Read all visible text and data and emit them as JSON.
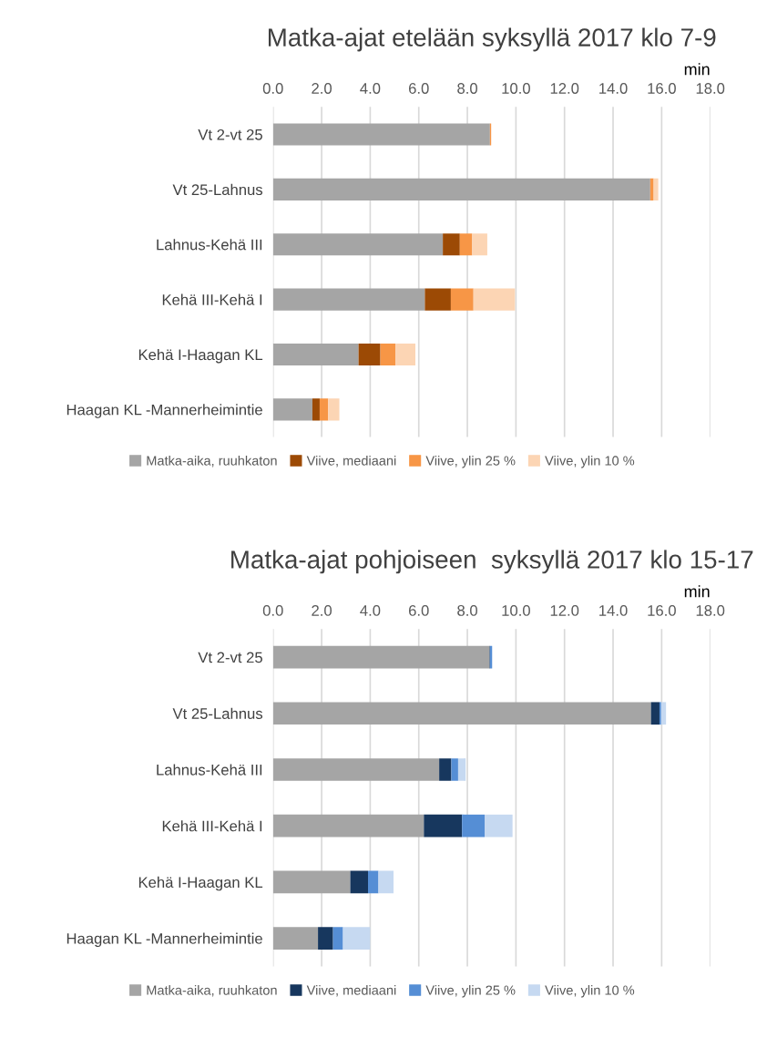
{
  "chart_data": [
    {
      "type": "bar",
      "orientation": "horizontal",
      "stacked": true,
      "title": "Matka-ajat etelään syksyllä 2017 klo 7-9",
      "xlabel": "min",
      "categories": [
        "Vt 2-vt 25",
        "Vt 25-Lahnus",
        "Lahnus-Kehä III",
        "Kehä III-Kehä I",
        "Kehä I-Haagan KL",
        "Haagan KL -Mannerheimintie"
      ],
      "series": [
        {
          "name": "Matka-aika, ruuhkaton",
          "color": "#a5a5a5",
          "values": [
            8.93,
            15.53,
            6.99,
            6.25,
            3.52,
            1.62
          ]
        },
        {
          "name": "Viive, mediaani",
          "color": "#9c4a05",
          "values": [
            0,
            0,
            0.7,
            1.07,
            0.9,
            0.3
          ]
        },
        {
          "name": "Viive, ylin 25 %",
          "color": "#f79646",
          "values": [
            0.05,
            0.14,
            0.51,
            0.93,
            0.62,
            0.35
          ]
        },
        {
          "name": "Viive, ylin 10 %",
          "color": "#fcd5b4",
          "values": [
            0,
            0.19,
            0.62,
            1.71,
            0.82,
            0.46
          ]
        }
      ],
      "xlim": [
        0,
        18
      ],
      "xticks": [
        {
          "value": 0,
          "label": "0.0"
        },
        {
          "value": 2,
          "label": "2.0"
        },
        {
          "value": 4,
          "label": "4.0"
        },
        {
          "value": 6,
          "label": "6.0"
        },
        {
          "value": 8,
          "label": "8.0"
        },
        {
          "value": 10,
          "label": "10.0"
        },
        {
          "value": 12,
          "label": "12.0"
        },
        {
          "value": 14,
          "label": "14.0"
        },
        {
          "value": 16,
          "label": "16.0"
        },
        {
          "value": 18,
          "label": "18.0"
        }
      ],
      "grid": "x",
      "legend": "bottom"
    },
    {
      "type": "bar",
      "orientation": "horizontal",
      "stacked": true,
      "title": "Matka-ajat pohjoiseen  syksyllä 2017 klo 15-17",
      "xlabel": "min",
      "categories": [
        "Vt 2-vt 25",
        "Vt 25-Lahnus",
        "Lahnus-Kehä III",
        "Kehä III-Kehä I",
        "Kehä I-Haagan KL",
        "Haagan KL -Mannerheimintie"
      ],
      "series": [
        {
          "name": "Matka-aika, ruuhkaton",
          "color": "#a5a5a5",
          "values": [
            8.91,
            15.56,
            6.84,
            6.21,
            3.18,
            1.85
          ]
        },
        {
          "name": "Viive, mediaani",
          "color": "#17375e",
          "values": [
            0.02,
            0.35,
            0.5,
            1.57,
            0.73,
            0.62
          ]
        },
        {
          "name": "Viive, ylin 25 %",
          "color": "#558ed5",
          "values": [
            0.09,
            0.07,
            0.28,
            0.93,
            0.43,
            0.41
          ]
        },
        {
          "name": "Viive, ylin 10 %",
          "color": "#c6d9f1",
          "values": [
            0,
            0.2,
            0.31,
            1.15,
            0.62,
            1.12
          ]
        }
      ],
      "xlim": [
        0,
        18
      ],
      "xticks": [
        {
          "value": 0,
          "label": "0.0"
        },
        {
          "value": 2,
          "label": "2.0"
        },
        {
          "value": 4,
          "label": "4.0"
        },
        {
          "value": 6,
          "label": "6.0"
        },
        {
          "value": 8,
          "label": "8.0"
        },
        {
          "value": 10,
          "label": "10.0"
        },
        {
          "value": 12,
          "label": "12.0"
        },
        {
          "value": 14,
          "label": "14.0"
        },
        {
          "value": 16,
          "label": "16.0"
        },
        {
          "value": 18,
          "label": "18.0"
        }
      ],
      "grid": "x",
      "legend": "bottom"
    }
  ]
}
